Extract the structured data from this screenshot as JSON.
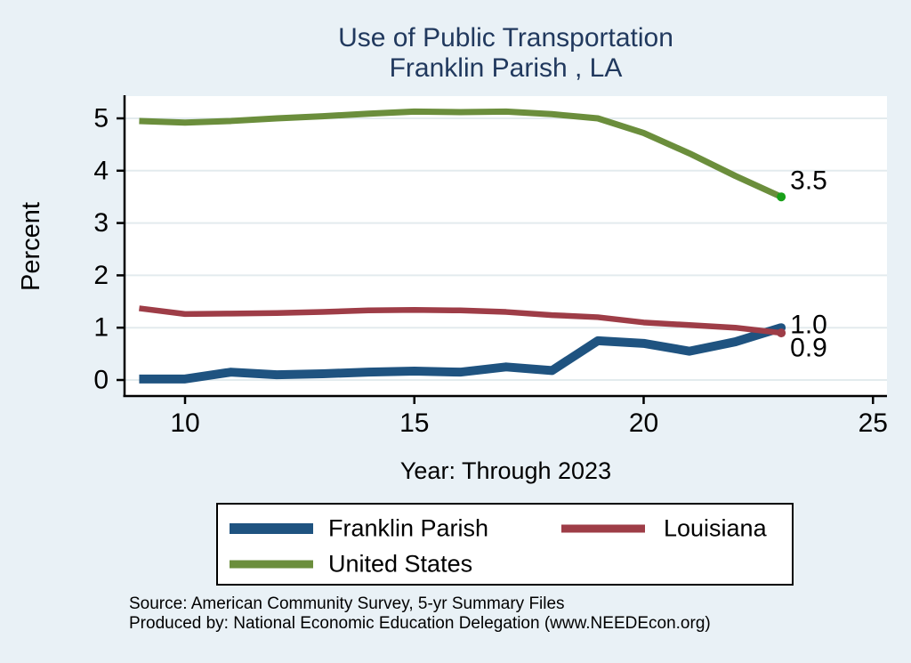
{
  "title": {
    "line1": "Use of Public Transportation",
    "line2": "Franklin Parish , LA"
  },
  "chart_data": {
    "type": "line",
    "title": "Use of Public Transportation",
    "subtitle": "Franklin Parish , LA",
    "xlabel": "Year: Through 2023",
    "ylabel": "Percent",
    "x": [
      9,
      10,
      11,
      12,
      13,
      14,
      15,
      16,
      17,
      18,
      19,
      20,
      21,
      22,
      23
    ],
    "xticks": [
      10,
      15,
      20,
      25
    ],
    "yticks": [
      0,
      1,
      2,
      3,
      4,
      5
    ],
    "xlim": [
      8.7,
      25.3
    ],
    "ylim": [
      0,
      5
    ],
    "grid": true,
    "legend_position": "bottom",
    "series": [
      {
        "name": "Franklin Parish",
        "color": "#1f5380",
        "width": 10,
        "end_label": "1.0",
        "end_dot_color": "#1f5380",
        "values": [
          0.02,
          0.02,
          0.15,
          0.1,
          0.12,
          0.15,
          0.17,
          0.15,
          0.25,
          0.18,
          0.75,
          0.7,
          0.55,
          0.73,
          1.0
        ]
      },
      {
        "name": "Louisiana",
        "color": "#9e3d47",
        "width": 6.5,
        "end_label": "0.9",
        "end_dot_color": "#9e3d47",
        "values": [
          1.37,
          1.26,
          1.27,
          1.28,
          1.3,
          1.33,
          1.34,
          1.33,
          1.3,
          1.24,
          1.2,
          1.1,
          1.05,
          1.0,
          0.9
        ]
      },
      {
        "name": "United States",
        "color": "#6b8e3c",
        "width": 7,
        "end_label": "3.5",
        "end_dot_color": "#18a018",
        "values": [
          4.95,
          4.92,
          4.95,
          5.0,
          5.04,
          5.09,
          5.13,
          5.12,
          5.13,
          5.08,
          5.0,
          4.72,
          4.33,
          3.9,
          3.5
        ]
      }
    ]
  },
  "footer": {
    "line1": "Source: American Community Survey, 5-yr Summary Files",
    "line2": "Produced by: National Economic Education Delegation (www.NEEDEcon.org)"
  },
  "colors": {
    "background": "#e9f1f6",
    "plot_background": "#ffffff",
    "gridline": "#e3ebee",
    "axis": "#000000",
    "title_text": "#21395e"
  }
}
